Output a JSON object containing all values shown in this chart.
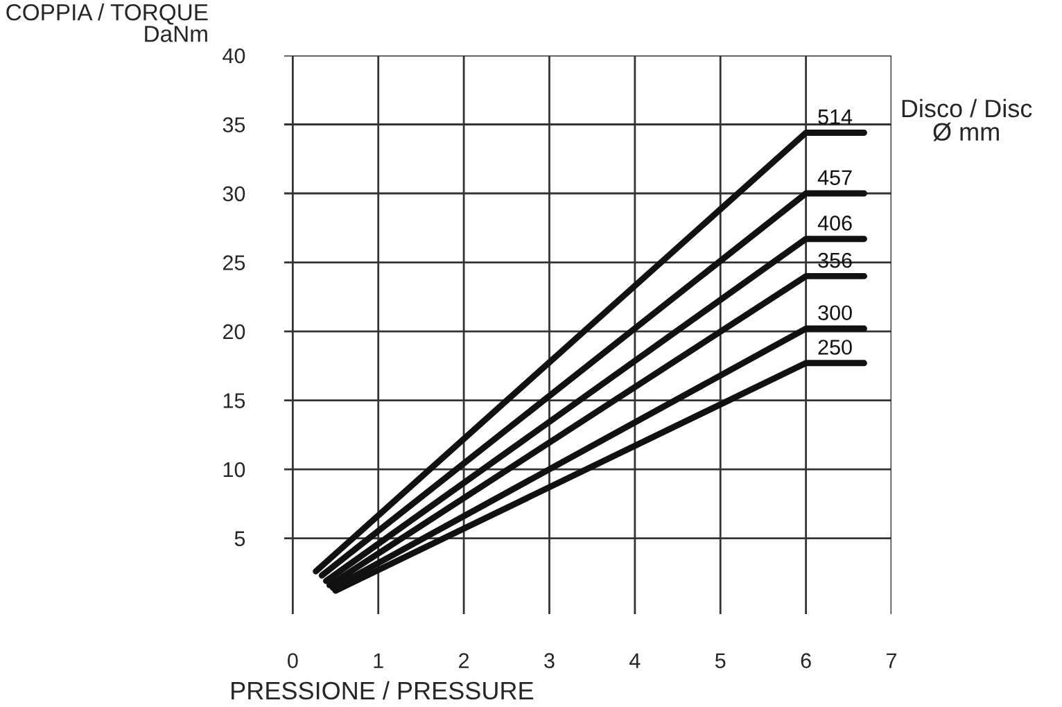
{
  "chart_data": {
    "type": "line",
    "xlabel": "PRESSIONE / PRESSURE",
    "ylabel": "COPPIA / TORQUE\nDaNm",
    "annotations": [
      "Disco / Disc\nØ mm"
    ],
    "xlim": [
      -0.1,
      7
    ],
    "ylim": [
      -0.5,
      40
    ],
    "xticks": [
      0,
      1,
      2,
      3,
      4,
      5,
      6,
      7
    ],
    "yticks": [
      5,
      10,
      15,
      20,
      25,
      30,
      35,
      40
    ],
    "grid": true,
    "marker": "none",
    "line_style": "solid",
    "series": [
      {
        "name": "514",
        "color": "#111111",
        "x": [
          0.27,
          6,
          6.68
        ],
        "values": [
          2.6,
          34.4,
          34.4
        ]
      },
      {
        "name": "457",
        "color": "#111111",
        "x": [
          0.34,
          6,
          6.68
        ],
        "values": [
          2.3,
          30.0,
          30.0
        ]
      },
      {
        "name": "406",
        "color": "#111111",
        "x": [
          0.39,
          6,
          6.68
        ],
        "values": [
          1.9,
          26.7,
          26.7
        ]
      },
      {
        "name": "356",
        "color": "#111111",
        "x": [
          0.43,
          6,
          6.68
        ],
        "values": [
          1.6,
          24.0,
          24.0
        ]
      },
      {
        "name": "300",
        "color": "#111111",
        "x": [
          0.47,
          6,
          6.68
        ],
        "values": [
          1.4,
          20.2,
          20.2
        ]
      },
      {
        "name": "250",
        "color": "#111111",
        "x": [
          0.5,
          6,
          6.68
        ],
        "values": [
          1.2,
          17.7,
          17.7
        ]
      }
    ]
  }
}
